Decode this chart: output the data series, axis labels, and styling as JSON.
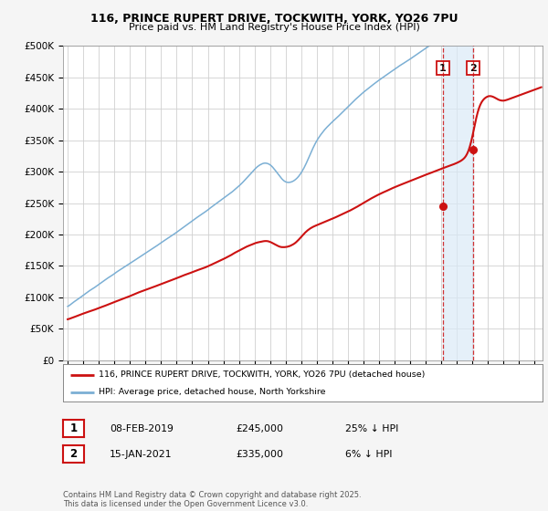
{
  "title": "116, PRINCE RUPERT DRIVE, TOCKWITH, YORK, YO26 7PU",
  "subtitle": "Price paid vs. HM Land Registry's House Price Index (HPI)",
  "hpi_color": "#7bafd4",
  "price_color": "#cc1111",
  "background_color": "#f5f5f5",
  "plot_bg": "#ffffff",
  "ylim": [
    0,
    500000
  ],
  "yticks": [
    0,
    50000,
    100000,
    150000,
    200000,
    250000,
    300000,
    350000,
    400000,
    450000,
    500000
  ],
  "ytick_labels": [
    "£0",
    "£50K",
    "£100K",
    "£150K",
    "£200K",
    "£250K",
    "£300K",
    "£350K",
    "£400K",
    "£450K",
    "£500K"
  ],
  "xlim_start": 1994.7,
  "xlim_end": 2025.5,
  "xticks": [
    1995,
    1996,
    1997,
    1998,
    1999,
    2000,
    2001,
    2002,
    2003,
    2004,
    2005,
    2006,
    2007,
    2008,
    2009,
    2010,
    2011,
    2012,
    2013,
    2014,
    2015,
    2016,
    2017,
    2018,
    2019,
    2020,
    2021,
    2022,
    2023,
    2024,
    2025
  ],
  "purchase1_year": 2019.1,
  "purchase1_price": 245000,
  "purchase1_label": "1",
  "purchase2_year": 2021.05,
  "purchase2_price": 335000,
  "purchase2_label": "2",
  "legend_line1": "116, PRINCE RUPERT DRIVE, TOCKWITH, YORK, YO26 7PU (detached house)",
  "legend_line2": "HPI: Average price, detached house, North Yorkshire",
  "table_row1": [
    "1",
    "08-FEB-2019",
    "£245,000",
    "25% ↓ HPI"
  ],
  "table_row2": [
    "2",
    "15-JAN-2021",
    "£335,000",
    "6% ↓ HPI"
  ],
  "footer": "Contains HM Land Registry data © Crown copyright and database right 2025.\nThis data is licensed under the Open Government Licence v3.0.",
  "shade_x1": 2019.1,
  "shade_x2": 2021.05
}
